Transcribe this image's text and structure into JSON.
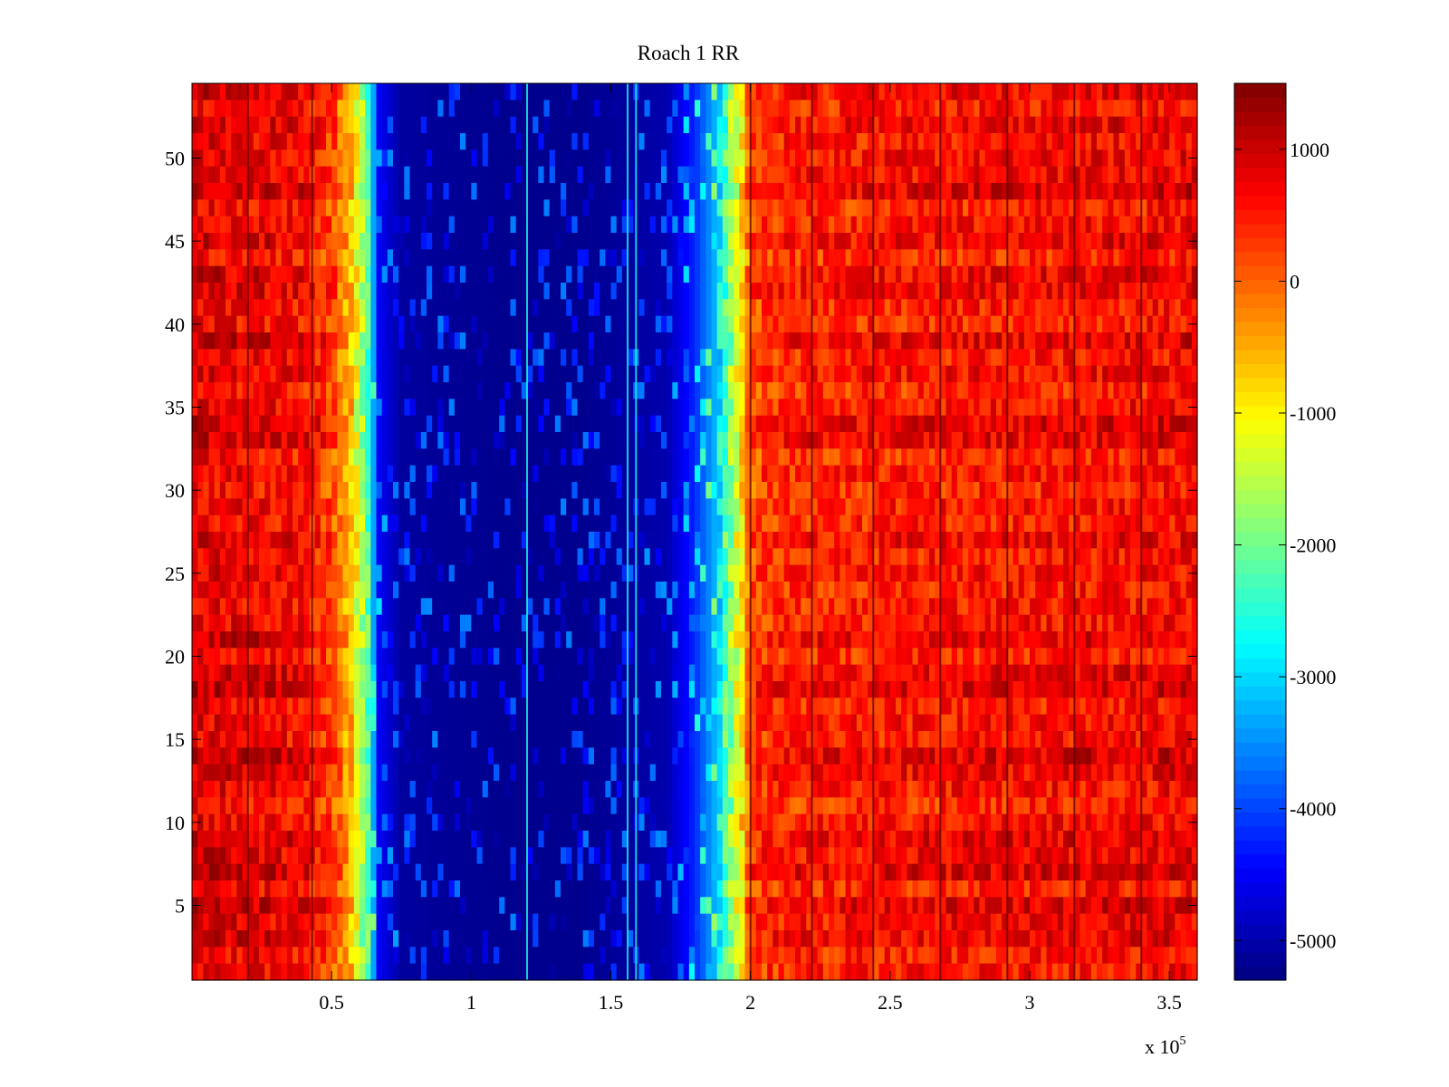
{
  "chart_data": {
    "type": "heatmap",
    "title": "Roach 1 RR",
    "xlabel": "",
    "ylabel": "",
    "colormap": "jet",
    "xlim": [
      0,
      360000
    ],
    "ylim": [
      0.5,
      54.5
    ],
    "clim": [
      -5300,
      1500
    ],
    "x_ticks": [
      50000,
      100000,
      150000,
      200000,
      250000,
      300000,
      350000
    ],
    "x_tick_labels": [
      "0.5",
      "1",
      "1.5",
      "2",
      "2.5",
      "3",
      "3.5"
    ],
    "x_multiplier_base": "x 10",
    "x_multiplier_exponent": "5",
    "y_ticks": [
      5,
      10,
      15,
      20,
      25,
      30,
      35,
      40,
      45,
      50
    ],
    "y_tick_labels": [
      "5",
      "10",
      "15",
      "20",
      "25",
      "30",
      "35",
      "40",
      "45",
      "50"
    ],
    "colorbar": {
      "ticks": [
        -5000,
        -4000,
        -3000,
        -2000,
        -1000,
        0,
        1000
      ],
      "tick_labels": [
        "-5000",
        "-4000",
        "-3000",
        "-2000",
        "-1000",
        "0",
        "1000"
      ]
    },
    "rows": 54,
    "column_profile_x": [
      0,
      20000,
      40000,
      50000,
      57000,
      63000,
      67000,
      75000,
      110000,
      140000,
      170000,
      180000,
      187000,
      192000,
      197000,
      200000,
      205000,
      215000,
      260000,
      300000,
      340000,
      360000
    ],
    "column_profile_value": [
      900,
      800,
      700,
      300,
      -600,
      -2200,
      -4500,
      -5100,
      -5200,
      -5200,
      -5000,
      -4200,
      -3300,
      -2000,
      -800,
      200,
      400,
      500,
      600,
      650,
      700,
      750
    ],
    "vertical_lines_x": [
      20000,
      43000,
      120000,
      156000,
      159000,
      200000,
      222000,
      244000,
      268000,
      292000,
      316000,
      340000
    ]
  }
}
